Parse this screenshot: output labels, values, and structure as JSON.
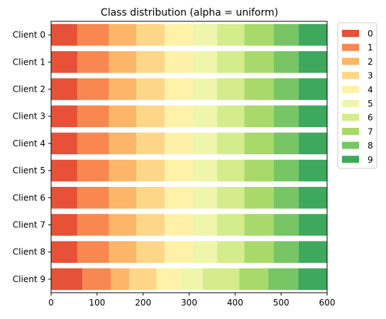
{
  "chart_data": {
    "type": "bar",
    "orientation": "horizontal",
    "stacked": true,
    "title": "Class distribution (alpha = uniform)",
    "xlabel": "",
    "ylabel": "",
    "xlim": [
      0,
      600
    ],
    "xticks": [
      0,
      100,
      200,
      300,
      400,
      500,
      600
    ],
    "categories": [
      "Client 0",
      "Client 1",
      "Client 2",
      "Client 3",
      "Client 4",
      "Client 5",
      "Client 6",
      "Client 7",
      "Client 8",
      "Client 9"
    ],
    "grid": false,
    "legend_position": "upper-right-outside",
    "series": [
      {
        "name": "0",
        "color": "#e65138",
        "values": [
          57,
          57,
          57,
          57,
          57,
          57,
          57,
          57,
          57,
          68
        ]
      },
      {
        "name": "1",
        "color": "#f88750",
        "values": [
          69,
          69,
          69,
          69,
          69,
          69,
          69,
          69,
          69,
          62
        ]
      },
      {
        "name": "2",
        "color": "#fdb567",
        "values": [
          59,
          59,
          59,
          59,
          59,
          59,
          59,
          59,
          59,
          40
        ]
      },
      {
        "name": "3",
        "color": "#fed688",
        "values": [
          62,
          62,
          62,
          62,
          62,
          62,
          62,
          62,
          62,
          59
        ]
      },
      {
        "name": "4",
        "color": "#fff1a8",
        "values": [
          61,
          61,
          61,
          61,
          61,
          61,
          61,
          61,
          61,
          53
        ]
      },
      {
        "name": "5",
        "color": "#eff6ab",
        "values": [
          53,
          53,
          53,
          53,
          53,
          53,
          53,
          53,
          53,
          48
        ]
      },
      {
        "name": "6",
        "color": "#d4ec8b",
        "values": [
          59,
          59,
          59,
          59,
          59,
          59,
          59,
          59,
          59,
          79
        ]
      },
      {
        "name": "7",
        "color": "#a9d96a",
        "values": [
          64,
          64,
          64,
          64,
          64,
          64,
          64,
          64,
          64,
          63
        ]
      },
      {
        "name": "8",
        "color": "#78c565",
        "values": [
          54,
          54,
          54,
          54,
          54,
          54,
          54,
          54,
          54,
          65
        ]
      },
      {
        "name": "9",
        "color": "#3ea95c",
        "values": [
          62,
          62,
          62,
          62,
          62,
          62,
          62,
          62,
          62,
          63
        ]
      }
    ]
  }
}
